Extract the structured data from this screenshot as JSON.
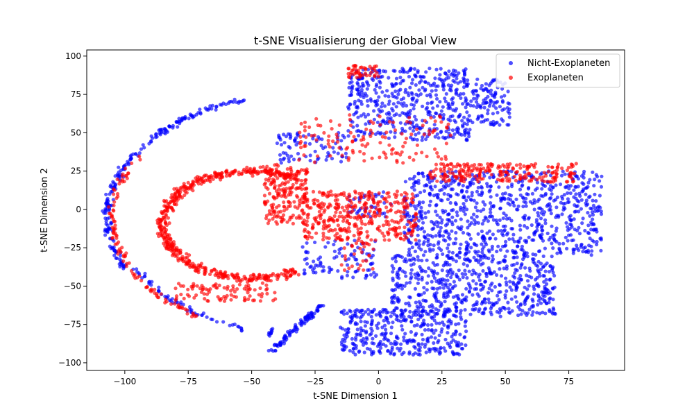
{
  "chart_data": {
    "type": "scatter",
    "title": "t-SNE Visualisierung der Global View",
    "xlabel": "t-SNE Dimension 1",
    "ylabel": "t-SNE Dimension 2",
    "xlim": [
      -115,
      97
    ],
    "ylim": [
      -105,
      104
    ],
    "xticks": [
      -100,
      -75,
      -50,
      -25,
      0,
      25,
      50,
      75
    ],
    "yticks": [
      -100,
      -75,
      -50,
      -25,
      0,
      25,
      50,
      75,
      100
    ],
    "grid": false,
    "legend_position": "top-right",
    "series": [
      {
        "name": "Nicht-Exoplaneten",
        "color": "#0000ff",
        "clusters": [
          {
            "shape": "arc",
            "cx": -25,
            "cy": -5,
            "r": 82,
            "a0": 110,
            "a1": 205,
            "n": 220,
            "spread": 2.5
          },
          {
            "shape": "arc",
            "cx": -25,
            "cy": -5,
            "r": 78,
            "a0": 205,
            "a1": 250,
            "n": 60,
            "spread": 2.5
          },
          {
            "shape": "line",
            "x0": -42,
            "y0": -92,
            "x1": -22,
            "y1": -62,
            "n": 90,
            "spread": 2
          },
          {
            "shape": "line",
            "x0": -43,
            "y0": -82,
            "x1": -42,
            "y1": -78,
            "n": 10,
            "spread": 1
          },
          {
            "shape": "blob",
            "x0": -12,
            "x1": 36,
            "y0": 45,
            "y1": 92,
            "n": 480
          },
          {
            "shape": "blob",
            "x0": 36,
            "x1": 52,
            "y0": 55,
            "y1": 85,
            "n": 110
          },
          {
            "shape": "blob",
            "x0": -40,
            "x1": -12,
            "y0": 30,
            "y1": 50,
            "n": 80
          },
          {
            "shape": "blob",
            "x0": 10,
            "x1": 88,
            "y0": -30,
            "y1": 25,
            "n": 820
          },
          {
            "shape": "blob",
            "x0": 5,
            "x1": 70,
            "y0": -70,
            "y1": -30,
            "n": 560
          },
          {
            "shape": "blob",
            "x0": -15,
            "x1": 35,
            "y0": -95,
            "y1": -65,
            "n": 360
          },
          {
            "shape": "blob",
            "x0": -30,
            "x1": 0,
            "y0": -45,
            "y1": -20,
            "n": 90
          },
          {
            "shape": "blob",
            "x0": -12,
            "x1": 5,
            "y0": -5,
            "y1": 12,
            "n": 40
          }
        ]
      },
      {
        "name": "Exoplaneten",
        "color": "#ff0000",
        "clusters": [
          {
            "shape": "arc",
            "cx": -25,
            "cy": -5,
            "r": 80,
            "a0": 150,
            "a1": 235,
            "n": 110,
            "spread": 2.5
          },
          {
            "shape": "arc",
            "cx": -50,
            "cy": -10,
            "r": 35,
            "a0": 60,
            "a1": 300,
            "n": 520,
            "spread": 4
          },
          {
            "shape": "blob",
            "x0": -45,
            "x1": -28,
            "y0": -10,
            "y1": 30,
            "n": 200
          },
          {
            "shape": "blob",
            "x0": -30,
            "x1": 15,
            "y0": -20,
            "y1": 12,
            "n": 380
          },
          {
            "shape": "blob",
            "x0": 20,
            "x1": 78,
            "y0": 18,
            "y1": 30,
            "n": 220
          },
          {
            "shape": "blob",
            "x0": -32,
            "x1": 30,
            "y0": 30,
            "y1": 62,
            "n": 130
          },
          {
            "shape": "blob",
            "x0": -12,
            "x1": 0,
            "y0": 86,
            "y1": 94,
            "n": 45
          },
          {
            "shape": "blob",
            "x0": -80,
            "x1": -40,
            "y0": -60,
            "y1": -48,
            "n": 90
          },
          {
            "shape": "blob",
            "x0": -15,
            "x1": -2,
            "y0": -40,
            "y1": -20,
            "n": 30
          }
        ]
      }
    ]
  }
}
